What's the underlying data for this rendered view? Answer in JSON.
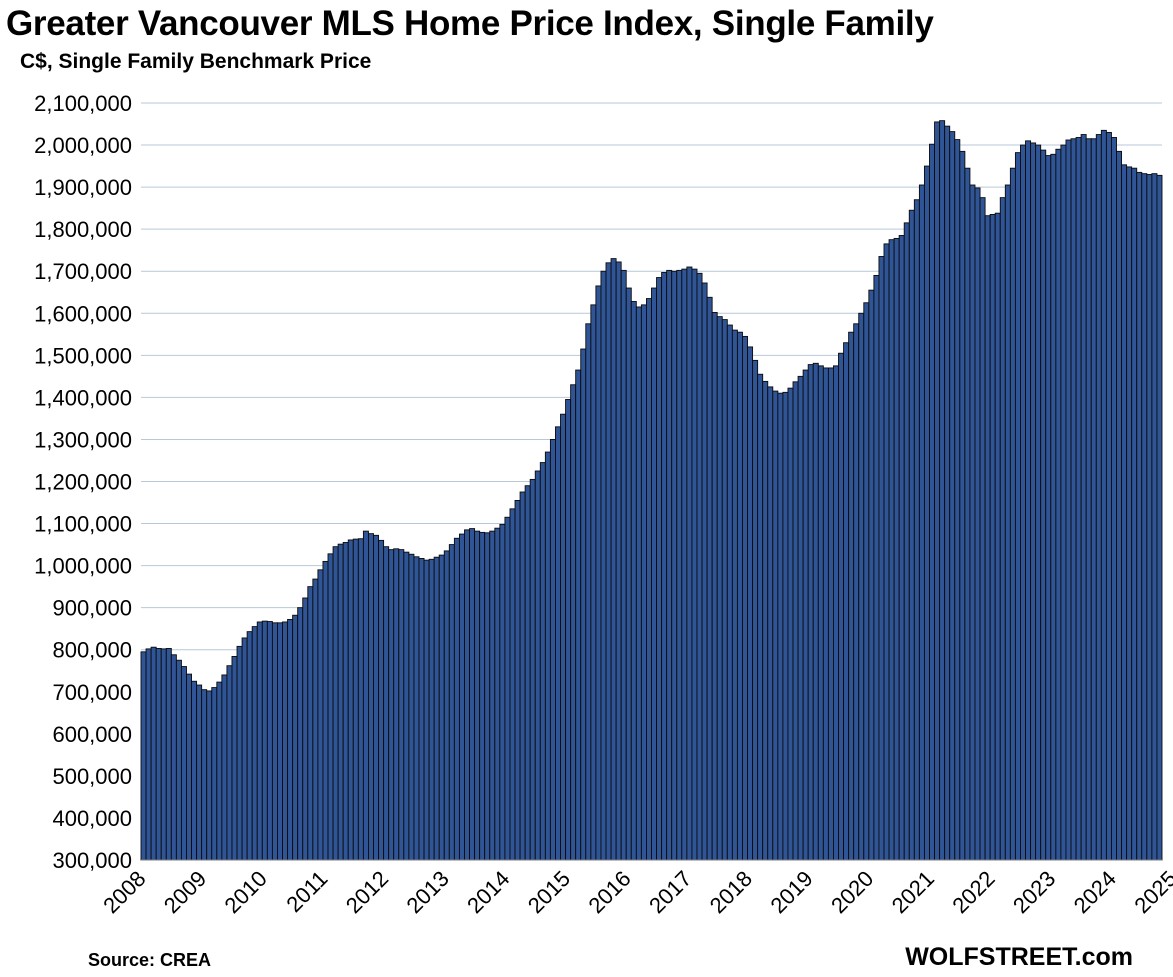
{
  "chart_data": {
    "type": "bar",
    "title": "Greater Vancouver MLS Home Price Index, Single Family",
    "subtitle": "C$, Single Family Benchmark Price",
    "ylabel": "",
    "xlabel": "",
    "ylim": [
      300000,
      2100000
    ],
    "yticks": [
      300000,
      400000,
      500000,
      600000,
      700000,
      800000,
      900000,
      1000000,
      1100000,
      1200000,
      1300000,
      1400000,
      1500000,
      1600000,
      1700000,
      1800000,
      1900000,
      2000000,
      2100000
    ],
    "ytick_labels": [
      "300,000",
      "400,000",
      "500,000",
      "600,000",
      "700,000",
      "800,000",
      "900,000",
      "1,000,000",
      "1,100,000",
      "1,200,000",
      "1,300,000",
      "1,400,000",
      "1,500,000",
      "1,600,000",
      "1,700,000",
      "1,800,000",
      "1,900,000",
      "2,000,000",
      "2,100,000"
    ],
    "x_labels": [
      "2008",
      "2009",
      "2010",
      "2011",
      "2012",
      "2013",
      "2014",
      "2015",
      "2016",
      "2017",
      "2018",
      "2019",
      "2020",
      "2021",
      "2022",
      "2023",
      "2024",
      "2025"
    ],
    "bar_color": "#2f5597",
    "grid": true,
    "values": [
      795000,
      802000,
      806000,
      803000,
      802000,
      803000,
      788000,
      775000,
      760000,
      742000,
      725000,
      716000,
      705000,
      702000,
      710000,
      723000,
      740000,
      762000,
      784000,
      808000,
      828000,
      843000,
      855000,
      866000,
      868000,
      867000,
      864000,
      864000,
      866000,
      872000,
      882000,
      900000,
      923000,
      950000,
      968000,
      990000,
      1010000,
      1028000,
      1045000,
      1051000,
      1055000,
      1061000,
      1063000,
      1064000,
      1082000,
      1076000,
      1072000,
      1060000,
      1045000,
      1038000,
      1040000,
      1038000,
      1032000,
      1027000,
      1021000,
      1017000,
      1013000,
      1015000,
      1020000,
      1025000,
      1035000,
      1050000,
      1065000,
      1075000,
      1085000,
      1088000,
      1082000,
      1079000,
      1078000,
      1082000,
      1089000,
      1098000,
      1115000,
      1135000,
      1155000,
      1175000,
      1190000,
      1205000,
      1225000,
      1245000,
      1270000,
      1300000,
      1330000,
      1360000,
      1395000,
      1430000,
      1465000,
      1515000,
      1575000,
      1620000,
      1665000,
      1700000,
      1720000,
      1730000,
      1722000,
      1702000,
      1660000,
      1628000,
      1615000,
      1620000,
      1635000,
      1660000,
      1685000,
      1697000,
      1702000,
      1700000,
      1702000,
      1705000,
      1710000,
      1705000,
      1695000,
      1672000,
      1638000,
      1602000,
      1592000,
      1585000,
      1572000,
      1560000,
      1555000,
      1545000,
      1520000,
      1488000,
      1455000,
      1438000,
      1425000,
      1415000,
      1410000,
      1412000,
      1422000,
      1437000,
      1450000,
      1465000,
      1478000,
      1481000,
      1475000,
      1470000,
      1470000,
      1475000,
      1505000,
      1530000,
      1555000,
      1575000,
      1600000,
      1625000,
      1655000,
      1690000,
      1735000,
      1765000,
      1775000,
      1778000,
      1785000,
      1815000,
      1845000,
      1870000,
      1905000,
      1950000,
      2002000,
      2055000,
      2058000,
      2045000,
      2032000,
      2013000,
      1985000,
      1945000,
      1905000,
      1898000,
      1875000,
      1832000,
      1835000,
      1838000,
      1875000,
      1905000,
      1945000,
      1982000,
      2000000,
      2010000,
      2005000,
      2000000,
      1988000,
      1975000,
      1978000,
      1990000,
      2000000,
      2012000,
      2015000,
      2018000,
      2025000,
      2015000,
      2015000,
      2025000,
      2035000,
      2030000,
      2018000,
      1985000,
      1953000,
      1948000,
      1945000,
      1935000,
      1932000,
      1930000,
      1932000,
      1928000
    ]
  },
  "footer": {
    "source": "Source: CREA",
    "brand": "WOLFSTREET.com"
  }
}
